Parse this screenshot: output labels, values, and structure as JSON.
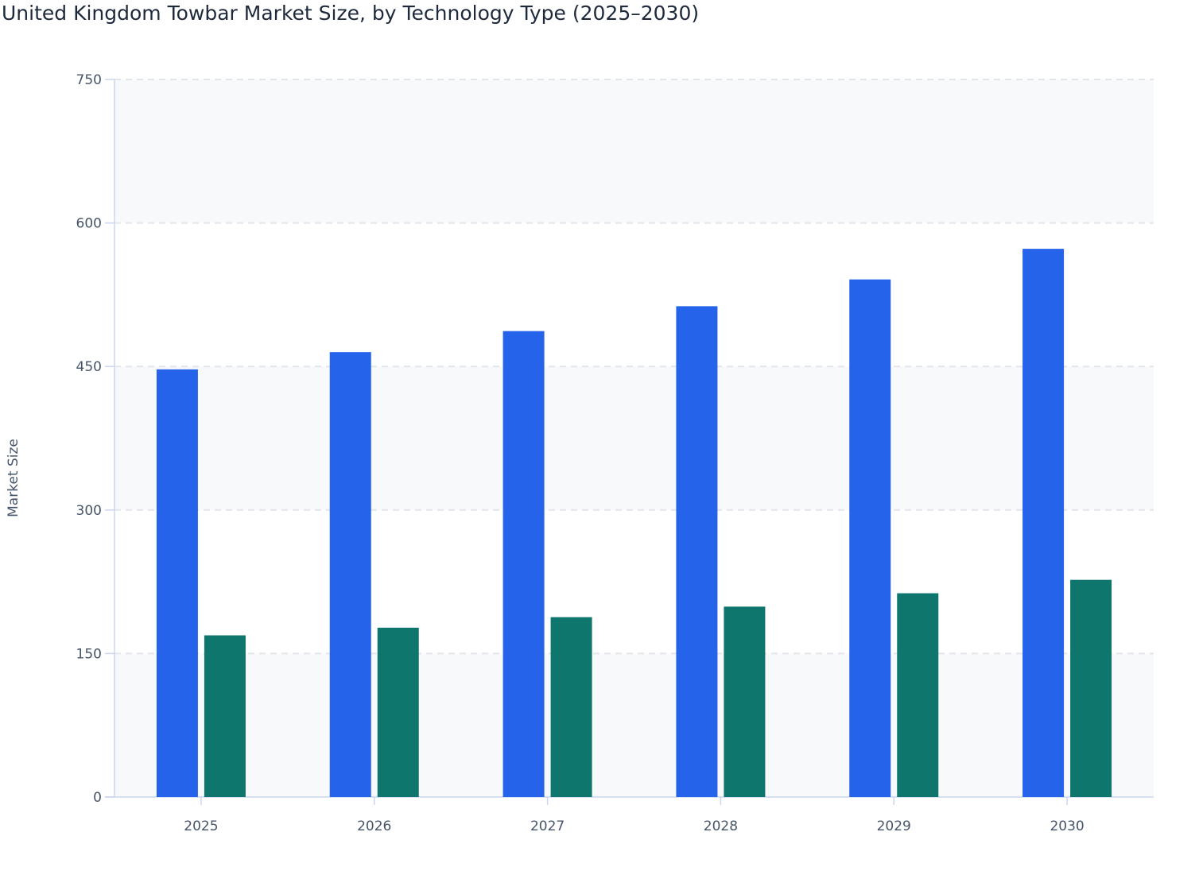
{
  "chart_data": {
    "type": "bar",
    "title": "United Kingdom Towbar Market Size, by Technology Type (2025–2030)",
    "xlabel": "",
    "ylabel": "Market Size",
    "ylim": [
      0,
      750
    ],
    "yticks": [
      0,
      150,
      300,
      450,
      600,
      750
    ],
    "grid": true,
    "categories": [
      "2025",
      "2026",
      "2027",
      "2028",
      "2029",
      "2030"
    ],
    "series": [
      {
        "values": [
          447,
          465,
          487,
          513,
          541,
          573
        ],
        "color": "#2563eb"
      },
      {
        "values": [
          169,
          177,
          188,
          199,
          213,
          227
        ],
        "color": "#0f766e"
      }
    ]
  }
}
